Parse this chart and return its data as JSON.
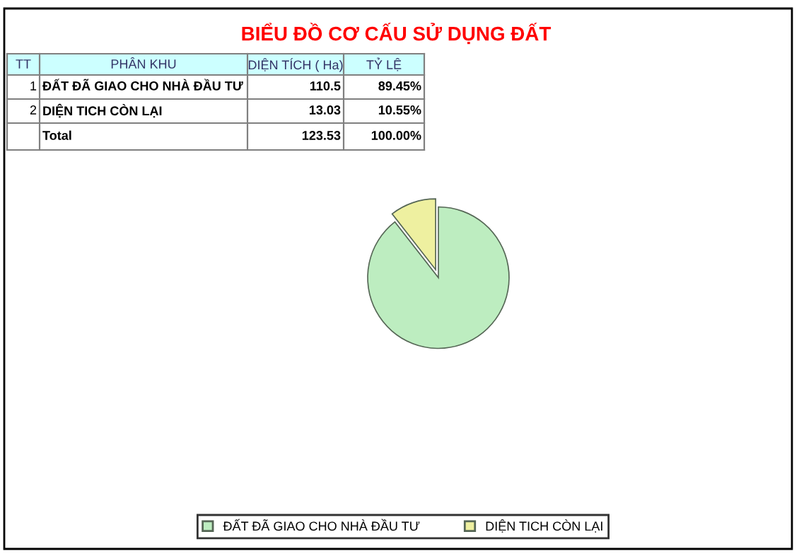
{
  "chart_data": {
    "type": "pie",
    "title": "BIỂU ĐỒ CƠ CẤU SỬ DỤNG ĐẤT",
    "categories": [
      "ĐẤT ĐÃ GIAO CHO NHÀ ĐẦU TƯ",
      "DIỆN TICH CÒN LẠI"
    ],
    "values": [
      89.45,
      10.55
    ],
    "colors": [
      "#bdedc0",
      "#eef0a0"
    ],
    "annotations": [
      "TT",
      "PHÂN KHU",
      "DIỆN TÍCH ( Ha)",
      "TỶ LỆ",
      "1",
      "2",
      "110.5",
      "13.03",
      "Total",
      "123.53",
      "100.00%",
      "89.45%",
      "10.55%"
    ],
    "legend": "bottom"
  }
}
